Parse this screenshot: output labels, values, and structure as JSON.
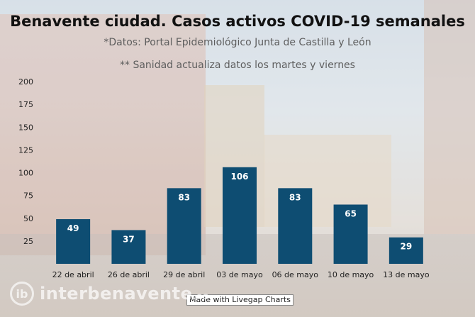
{
  "chart_data": {
    "type": "bar",
    "title": "Benavente ciudad. Casos activos COVID-19 semanales",
    "subtitles": [
      "*Datos: Portal Epidemiológico Junta de Castilla y León",
      "** Sanidad actualiza datos los martes y viernes"
    ],
    "categories": [
      "22 de abril",
      "26 de abril",
      "29 de abril",
      "03 de mayo",
      "06 de mayo",
      "10 de mayo",
      "13 de mayo"
    ],
    "values": [
      49,
      37,
      83,
      106,
      83,
      65,
      29
    ],
    "yticks": [
      25,
      50,
      75,
      100,
      125,
      150,
      175,
      200
    ],
    "ylim": [
      0,
      200
    ],
    "bar_color": "#0e4d72",
    "value_label_color": "#ffffff",
    "xlabel": "",
    "ylabel": "",
    "grid": false,
    "legend": "none"
  },
  "footer": {
    "credit": "Made with Livegap Charts",
    "watermark_logo_text": "ib",
    "watermark_text": "interbenavente",
    "watermark_suffix": ".es"
  }
}
